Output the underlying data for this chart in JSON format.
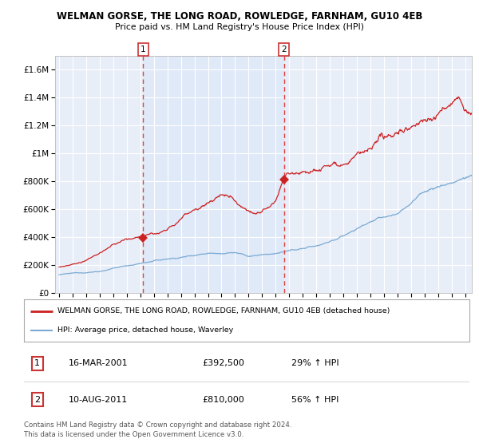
{
  "title": "WELMAN GORSE, THE LONG ROAD, ROWLEDGE, FARNHAM, GU10 4EB",
  "subtitle": "Price paid vs. HM Land Registry's House Price Index (HPI)",
  "legend_line1": "WELMAN GORSE, THE LONG ROAD, ROWLEDGE, FARNHAM, GU10 4EB (detached house)",
  "legend_line2": "HPI: Average price, detached house, Waverley",
  "annotation1_num": "1",
  "annotation1_date": "16-MAR-2001",
  "annotation1_price": "£392,500",
  "annotation1_hpi": "29% ↑ HPI",
  "annotation2_num": "2",
  "annotation2_date": "10-AUG-2011",
  "annotation2_price": "£810,000",
  "annotation2_hpi": "56% ↑ HPI",
  "footer1": "Contains HM Land Registry data © Crown copyright and database right 2024.",
  "footer2": "This data is licensed under the Open Government Licence v3.0.",
  "sale1_year": 2001.21,
  "sale1_value": 392500,
  "sale2_year": 2011.61,
  "sale2_value": 810000,
  "red_color": "#cc2222",
  "blue_color": "#7aaad4",
  "dashed_color": "#dd4444",
  "background_color": "#ffffff",
  "plot_bg_color": "#e8eef8",
  "grid_color": "#ffffff",
  "shade_color": "#dde8f8",
  "ylim_max": 1700000,
  "xmin": 1994.7,
  "xmax": 2025.5
}
